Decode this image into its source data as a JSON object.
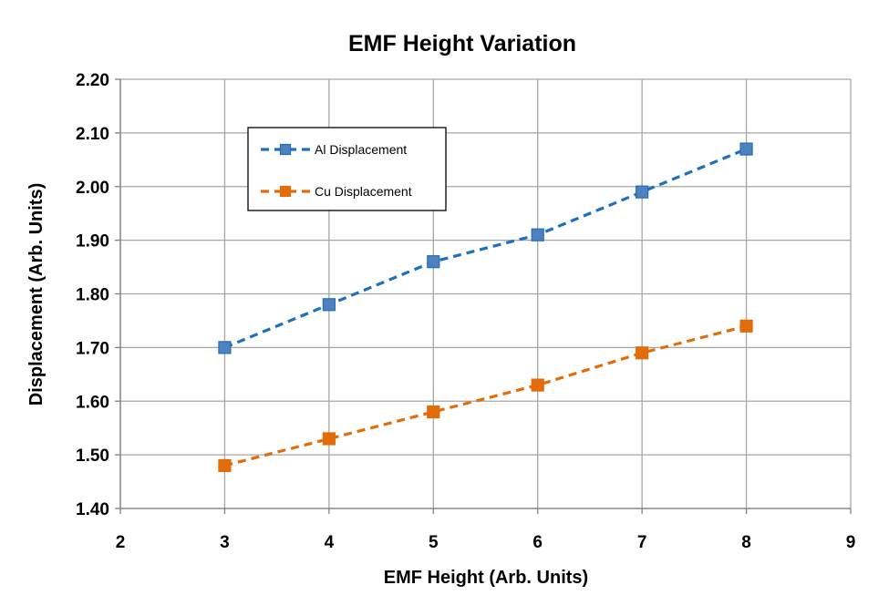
{
  "chart_data": {
    "type": "line",
    "title": "EMF Height Variation",
    "xlabel": "EMF Height (Arb. Units)",
    "ylabel": "Displacement (Arb. Units)",
    "xlim": [
      2,
      9
    ],
    "ylim": [
      1.4,
      2.2
    ],
    "x_ticks": [
      "2",
      "3",
      "4",
      "5",
      "6",
      "7",
      "8",
      "9"
    ],
    "y_ticks": [
      "1.40",
      "1.50",
      "1.60",
      "1.70",
      "1.80",
      "1.90",
      "2.00",
      "2.10",
      "2.20"
    ],
    "grid": true,
    "legend_position": "top-left",
    "series": [
      {
        "name": "Al Displacement",
        "color": "#1f6fbf",
        "marker_fill": "#4f81bd",
        "marker": "square",
        "line_style": "dashed",
        "x": [
          3,
          4,
          5,
          6,
          7,
          8
        ],
        "y": [
          1.7,
          1.78,
          1.86,
          1.91,
          1.99,
          2.07
        ]
      },
      {
        "name": "Cu Displacement",
        "color": "#e36c0a",
        "marker_fill": "#e36c0a",
        "marker": "square",
        "line_style": "dashed",
        "x": [
          3,
          4,
          5,
          6,
          7,
          8
        ],
        "y": [
          1.48,
          1.53,
          1.58,
          1.63,
          1.69,
          1.74
        ]
      }
    ]
  }
}
